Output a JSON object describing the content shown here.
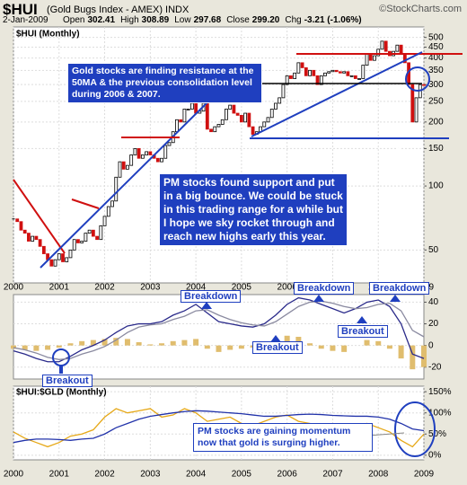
{
  "header": {
    "symbol": "$HUI",
    "name": "(Gold Bugs Index - AMEX) INDX",
    "source": "©StockCharts.com",
    "date": "2-Jan-2009",
    "quote": [
      {
        "label": "Open",
        "value": "302.41"
      },
      {
        "label": "High",
        "value": "308.89"
      },
      {
        "label": "Low",
        "value": "297.68"
      },
      {
        "label": "Close",
        "value": "299.20"
      },
      {
        "label": "Chg",
        "value": "-3.21 (-1.06%)"
      }
    ]
  },
  "chart_data": [
    {
      "type": "candlestick",
      "title": "$HUI (Monthly)",
      "log_scale": true,
      "grid": true,
      "up_color": "#000000",
      "down_color": "#d01010",
      "categories": [
        "2000",
        null,
        null,
        null,
        null,
        null,
        null,
        null,
        null,
        null,
        null,
        null,
        "2001",
        null,
        null,
        null,
        null,
        null,
        null,
        null,
        null,
        null,
        null,
        null,
        "2002",
        null,
        null,
        null,
        null,
        null,
        null,
        null,
        null,
        null,
        null,
        null,
        "2003",
        null,
        null,
        null,
        null,
        null,
        null,
        null,
        null,
        null,
        null,
        null,
        "2004",
        null,
        null,
        null,
        null,
        null,
        null,
        null,
        null,
        null,
        null,
        null,
        "2005",
        null,
        null,
        null,
        null,
        null,
        null,
        null,
        null,
        null,
        null,
        null,
        "2006",
        null,
        null,
        null,
        null,
        null,
        null,
        null,
        null,
        null,
        null,
        null,
        "2007",
        null,
        null,
        null,
        null,
        null,
        null,
        null,
        null,
        null,
        null,
        null,
        "2008",
        null,
        null,
        null,
        null,
        null,
        null,
        null,
        null,
        null,
        null,
        null,
        "2009"
      ],
      "values": [
        70,
        68,
        62,
        60,
        55,
        58,
        56,
        52,
        48,
        45,
        42,
        45,
        48,
        44,
        46,
        50,
        56,
        54,
        55,
        60,
        62,
        58,
        56,
        65,
        72,
        80,
        85,
        110,
        130,
        120,
        125,
        140,
        150,
        135,
        140,
        145,
        140,
        135,
        130,
        135,
        155,
        160,
        180,
        205,
        200,
        230,
        230,
        245,
        220,
        225,
        245,
        185,
        180,
        190,
        195,
        205,
        230,
        240,
        220,
        215,
        200,
        220,
        190,
        175,
        180,
        190,
        200,
        210,
        230,
        245,
        260,
        300,
        330,
        320,
        340,
        380,
        360,
        330,
        350,
        330,
        300,
        330,
        340,
        345,
        350,
        345,
        340,
        345,
        330,
        330,
        320,
        320,
        370,
        420,
        390,
        410,
        440,
        480,
        430,
        410,
        430,
        460,
        420,
        380,
        300,
        200,
        260,
        300,
        299
      ],
      "ylim": [
        35,
        560
      ],
      "yticks": [
        500,
        450,
        400,
        350,
        300,
        250,
        200,
        150,
        100,
        50
      ],
      "annotations": [
        "Gold stocks are finding resistance at the 50MA & the previous consolidation level during 2006 & 2007.",
        "PM stocks found support and put in a big bounce. We could be stuck in this trading range for a while but I hope we sky rocket through and reach new highs early this year."
      ]
    },
    {
      "type": "macd",
      "grid": true,
      "series": [
        {
          "name": "MACD",
          "color": "#2a2a8a",
          "values": [
            -5,
            -8,
            -12,
            -15,
            -15,
            -10,
            -4,
            0,
            5,
            12,
            18,
            20,
            20,
            22,
            28,
            32,
            38,
            30,
            22,
            20,
            18,
            17,
            20,
            28,
            38,
            44,
            42,
            38,
            34,
            30,
            34,
            40,
            42,
            36,
            20,
            -8,
            -12
          ]
        },
        {
          "name": "Signal",
          "color": "#8a8aa0",
          "values": [
            -2,
            -4,
            -7,
            -11,
            -13,
            -12,
            -8,
            -5,
            -1,
            5,
            12,
            17,
            19,
            20,
            24,
            27,
            32,
            33,
            28,
            24,
            21,
            19,
            18,
            22,
            29,
            36,
            40,
            41,
            39,
            36,
            34,
            35,
            38,
            39,
            32,
            14,
            8
          ]
        }
      ],
      "histogram": {
        "color": "#e0bd6e",
        "values": [
          -3,
          -4,
          -5,
          -4,
          -2,
          2,
          4,
          5,
          6,
          7,
          6,
          3,
          1,
          2,
          4,
          5,
          6,
          -3,
          -6,
          -4,
          -3,
          -2,
          2,
          6,
          9,
          8,
          2,
          -3,
          -5,
          -6,
          0,
          5,
          4,
          -3,
          -12,
          -22,
          -20
        ]
      },
      "ylim": [
        -31,
        47
      ],
      "yticks": [
        40,
        20,
        0,
        -20
      ],
      "annotations": [
        "Breakdown",
        "Breakout",
        "Breakdown",
        "Breakout",
        "Breakdown",
        "Breakout"
      ]
    },
    {
      "type": "line",
      "title": "$HUI:$GLD (Monthly)",
      "grid": true,
      "categories": [
        "2000",
        null,
        null,
        null,
        "2001",
        null,
        null,
        null,
        "2002",
        null,
        null,
        null,
        "2003",
        null,
        null,
        null,
        "2004",
        null,
        null,
        null,
        "2005",
        null,
        null,
        null,
        "2006",
        null,
        null,
        null,
        "2007",
        null,
        null,
        null,
        "2008",
        null,
        null,
        null,
        "2009"
      ],
      "series": [
        {
          "name": "Ratio",
          "color": "#e6a817",
          "values": [
            55,
            40,
            30,
            20,
            30,
            45,
            50,
            60,
            90,
            110,
            100,
            105,
            110,
            90,
            95,
            110,
            100,
            80,
            85,
            90,
            75,
            70,
            80,
            90,
            95,
            80,
            75,
            70,
            70,
            72,
            68,
            75,
            65,
            55,
            35,
            20,
            50
          ]
        },
        {
          "name": "Average",
          "color": "#2233aa",
          "values": [
            30,
            35,
            38,
            38,
            37,
            35,
            38,
            40,
            50,
            65,
            75,
            85,
            92,
            96,
            100,
            103,
            105,
            104,
            102,
            100,
            98,
            95,
            92,
            92,
            94,
            96,
            97,
            96,
            94,
            93,
            92,
            92,
            90,
            85,
            75,
            62,
            58
          ]
        }
      ],
      "ylim": [
        -11,
        163
      ],
      "yticks": [
        {
          "value": 150,
          "label": "150%"
        },
        {
          "value": 100,
          "label": "100%"
        },
        {
          "value": 50,
          "label": "50%"
        },
        {
          "value": 0,
          "label": "0%"
        }
      ],
      "annotations": [
        "PM stocks are gaining momentum now that gold is surging higher."
      ]
    }
  ]
}
